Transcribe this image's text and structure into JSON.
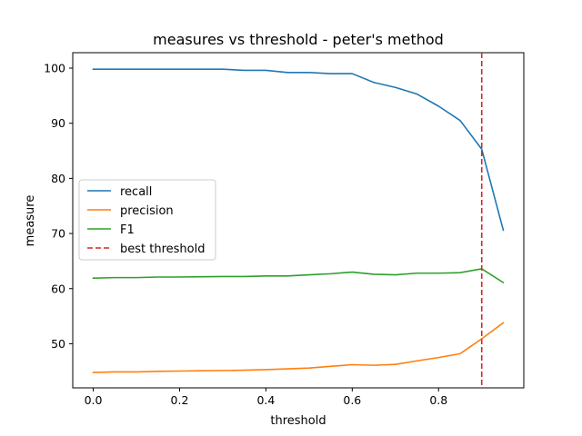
{
  "chart_data": {
    "type": "line",
    "title": "measures vs threshold - peter's method",
    "xlabel": "threshold",
    "ylabel": "measure",
    "xlim": [
      -0.0475,
      0.9975
    ],
    "ylim": [
      42.0,
      102.8
    ],
    "x_ticks": [
      0.0,
      0.2,
      0.4,
      0.6,
      0.8
    ],
    "x_tick_labels": [
      "0.0",
      "0.2",
      "0.4",
      "0.6",
      "0.8"
    ],
    "y_ticks": [
      50,
      60,
      70,
      80,
      90,
      100
    ],
    "y_tick_labels": [
      "50",
      "60",
      "70",
      "80",
      "90",
      "100"
    ],
    "grid": false,
    "legend_position": "center-left",
    "x": [
      0.0,
      0.05,
      0.1,
      0.15,
      0.2,
      0.25,
      0.3,
      0.35,
      0.4,
      0.45,
      0.5,
      0.55,
      0.6,
      0.65,
      0.7,
      0.75,
      0.8,
      0.85,
      0.9,
      0.95
    ],
    "series": [
      {
        "name": "recall",
        "color": "#1f77b4",
        "style": "solid",
        "values": [
          99.8,
          99.8,
          99.8,
          99.8,
          99.8,
          99.8,
          99.8,
          99.6,
          99.6,
          99.2,
          99.2,
          99.0,
          99.0,
          97.4,
          96.5,
          95.3,
          93.1,
          90.5,
          85.3,
          70.6
        ]
      },
      {
        "name": "precision",
        "color": "#ff7f0e",
        "style": "solid",
        "values": [
          44.8,
          44.9,
          44.9,
          45.0,
          45.05,
          45.1,
          45.15,
          45.2,
          45.3,
          45.45,
          45.6,
          45.9,
          46.2,
          46.1,
          46.25,
          46.9,
          47.5,
          48.2,
          50.9,
          53.8
        ]
      },
      {
        "name": "F1",
        "color": "#2ca02c",
        "style": "solid",
        "values": [
          61.9,
          62.0,
          62.0,
          62.1,
          62.1,
          62.15,
          62.2,
          62.2,
          62.3,
          62.3,
          62.5,
          62.7,
          63.0,
          62.6,
          62.5,
          62.8,
          62.8,
          62.9,
          63.6,
          61.1
        ]
      }
    ],
    "vlines": [
      {
        "name": "best threshold",
        "x": 0.9,
        "color": "#d62728",
        "style": "dashed"
      }
    ]
  }
}
